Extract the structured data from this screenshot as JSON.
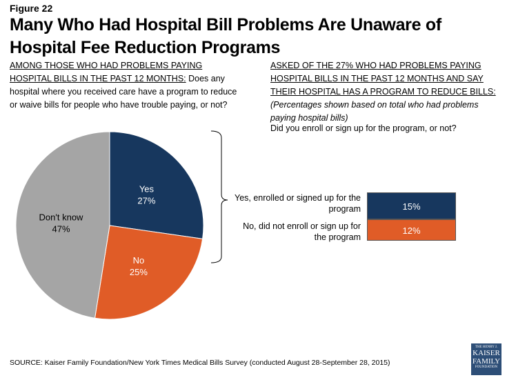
{
  "figure_label": "Figure 22",
  "title": "Many Who Had Hospital Bill Problems Are Unaware of Hospital Fee Reduction Programs",
  "left_question": {
    "lead": "AMONG THOSE WHO HAD PROBLEMS PAYING HOSPITAL BILLS IN THE PAST 12 MONTHS:",
    "text": " Does any hospital where you received care have a program to reduce or waive bills for people who have trouble paying, or not?"
  },
  "right_question": {
    "lead": "ASKED OF THE 27% WHO HAD PROBLEMS PAYING HOSPITAL BILLS IN THE PAST 12 MONTHS AND SAY THEIR HOSPITAL HAS A PROGRAM TO REDUCE BILLS:",
    "note": "(Percentages shown based on total who had problems paying hospital bills)",
    "question": "Did you enroll or sign up for the program, or not?"
  },
  "chart_data": [
    {
      "type": "pie",
      "slices": [
        {
          "label": "Yes",
          "value": 27,
          "display": "27%",
          "color": "#17375e"
        },
        {
          "label": "No",
          "value": 25,
          "display": "25%",
          "color": "#e05c27"
        },
        {
          "label": "Don't know",
          "value": 47,
          "display": "47%",
          "color": "#a5a5a5"
        }
      ]
    },
    {
      "type": "bar",
      "stacked": true,
      "categories": [
        "Yes, enrolled or signed up for the program",
        "No, did not enroll or sign up for the program"
      ],
      "values": [
        15,
        12
      ],
      "display": [
        "15%",
        "12%"
      ],
      "colors": [
        "#17375e",
        "#e05c27"
      ]
    }
  ],
  "source": "SOURCE: Kaiser Family Foundation/New York Times Medical Bills Survey (conducted August 28-September 28, 2015)",
  "logo": {
    "line1": "THE HENRY J.",
    "line2": "KAISER",
    "line3": "FAMILY",
    "line4": "FOUNDATION"
  }
}
